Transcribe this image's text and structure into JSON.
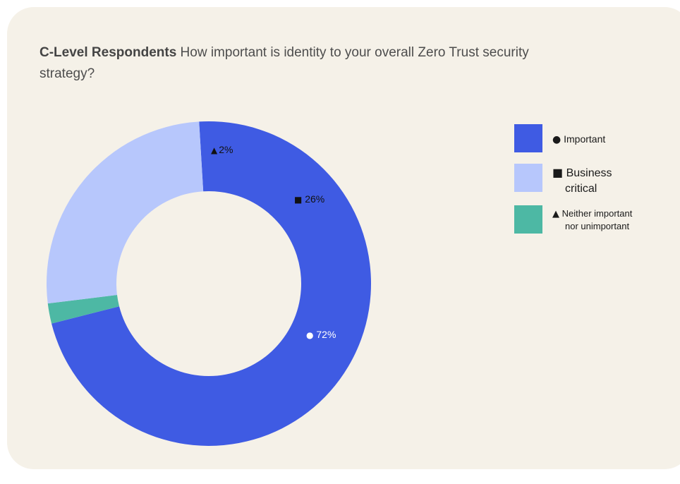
{
  "chart_data": {
    "type": "pie",
    "title_bold": "C-Level Respondents",
    "title_rest": "How important is identity to your overall Zero Trust security strategy?",
    "slices": [
      {
        "label": "Important",
        "value": 72,
        "value_label": "72%",
        "symbol": "●",
        "color": "#3f5be3",
        "label_color": "#ffffff"
      },
      {
        "label": "Neither important nor unimportant",
        "value": 2,
        "value_label": "2%",
        "symbol": "▲",
        "color": "#4db8a4",
        "label_color": "#111111"
      },
      {
        "label": "Business critical",
        "value": 26,
        "value_label": "26%",
        "symbol": "■",
        "color": "#b7c7fc",
        "label_color": "#111111"
      }
    ],
    "legend": [
      {
        "symbol": "●",
        "line1": "Important",
        "line2": "",
        "color": "#3f5be3"
      },
      {
        "symbol": "■",
        "line1": "Business",
        "line2": "critical",
        "color": "#b7c7fc"
      },
      {
        "symbol": "▲",
        "line1": "Neither important",
        "line2": "nor unimportant",
        "color": "#4db8a4"
      }
    ],
    "legend_position": "right",
    "background_color": "#f5f1e8"
  }
}
